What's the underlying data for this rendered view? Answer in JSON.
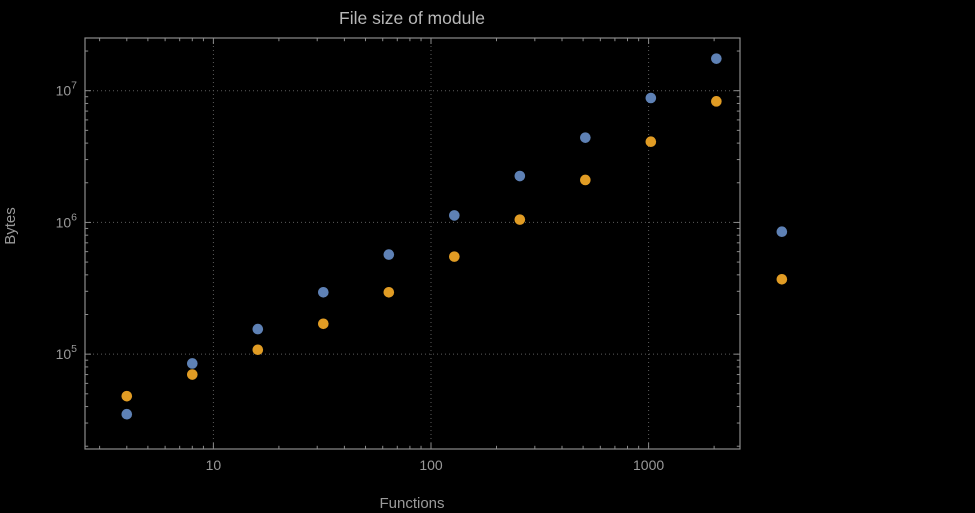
{
  "chart_data": {
    "type": "scatter",
    "title": "File size of module",
    "xlabel": "Functions",
    "ylabel": "Bytes",
    "x_scale": "log",
    "y_scale": "log",
    "grid": true,
    "legend": false,
    "x_log_range": [
      0.41,
      3.42
    ],
    "y_log_range": [
      4.28,
      7.4
    ],
    "x_ticks": [
      {
        "value": 10,
        "label": "10"
      },
      {
        "value": 100,
        "label": "100"
      },
      {
        "value": 1000,
        "label": "1000"
      }
    ],
    "y_ticks": [
      {
        "value": 100000,
        "mantissa": "10",
        "exponent": "5"
      },
      {
        "value": 1000000,
        "mantissa": "10",
        "exponent": "6"
      },
      {
        "value": 10000000,
        "mantissa": "10",
        "exponent": "7"
      }
    ],
    "series": [
      {
        "name": "series-blue",
        "color": "#5e81b5",
        "points": [
          [
            4,
            35000
          ],
          [
            8,
            85000
          ],
          [
            16,
            155000
          ],
          [
            32,
            295000
          ],
          [
            64,
            570000
          ],
          [
            128,
            1130000
          ],
          [
            256,
            2250000
          ],
          [
            512,
            4400000
          ],
          [
            1024,
            8800000
          ],
          [
            2048,
            17500000
          ],
          [
            4096,
            850000
          ]
        ]
      },
      {
        "name": "series-orange",
        "color": "#e19c24",
        "points": [
          [
            4,
            48000
          ],
          [
            8,
            70000
          ],
          [
            16,
            108000
          ],
          [
            32,
            170000
          ],
          [
            64,
            295000
          ],
          [
            128,
            550000
          ],
          [
            256,
            1050000
          ],
          [
            512,
            2100000
          ],
          [
            1024,
            4100000
          ],
          [
            2048,
            8300000
          ],
          [
            4096,
            370000
          ]
        ]
      }
    ],
    "colors": {
      "background": "#000000",
      "frame": "#8c8c8c",
      "grid": "#5c5c5c",
      "tick_text": "#999999",
      "label_text": "#9a9a9a",
      "title_text": "#b8b8b8"
    }
  }
}
